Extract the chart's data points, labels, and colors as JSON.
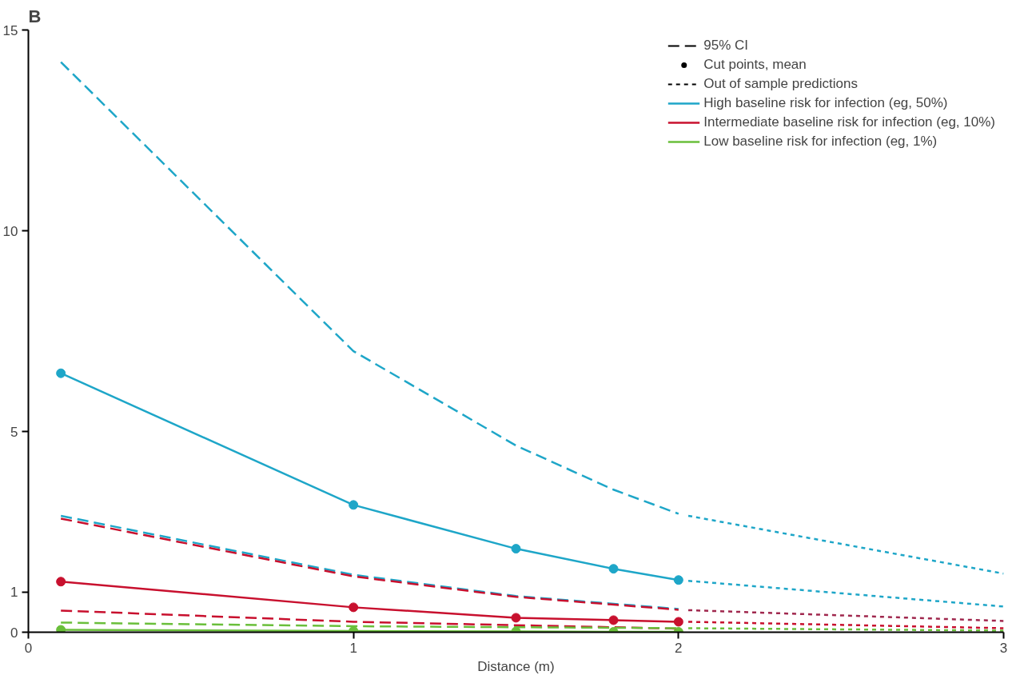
{
  "chart_data": {
    "type": "line",
    "title": "B",
    "xlabel": "Distance (m)",
    "xlim": [
      0,
      3
    ],
    "ylim": [
      0,
      15
    ],
    "xticks": [
      0,
      1,
      2,
      3
    ],
    "yticks": [
      0,
      1,
      5,
      10,
      15
    ],
    "grid": false,
    "legend": "top right",
    "annotations": [
      "95% CI",
      "Cut points, mean",
      "Out of sample predictions"
    ],
    "series": [
      {
        "name": "High baseline risk for infection (eg, 50%)",
        "color": "#1ea6c8",
        "x": [
          0.1,
          1,
          1.5,
          1.8,
          2
        ],
        "values": [
          6.45,
          3.17,
          2.08,
          1.58,
          1.3
        ],
        "line_style": "solid",
        "marker": "circle"
      },
      {
        "name": "Intermediate baseline risk for infection (eg, 10%)",
        "color": "#c8102e",
        "x": [
          0.1,
          1,
          1.5,
          1.8,
          2
        ],
        "values": [
          1.26,
          0.62,
          0.36,
          0.3,
          0.26
        ],
        "line_style": "solid",
        "marker": "circle"
      },
      {
        "name": "Low baseline risk for infection (eg, 1%)",
        "color": "#6abf3b",
        "x": [
          0.1,
          1,
          1.5,
          1.8,
          2
        ],
        "values": [
          0.06,
          0.03,
          0.02,
          0.01,
          0.01
        ],
        "line_style": "solid",
        "marker": "circle"
      },
      {
        "color": "#1ea6c8",
        "x": [
          0.1,
          1,
          1.5,
          1.8,
          2
        ],
        "values": [
          14.2,
          7.0,
          4.65,
          3.55,
          2.95
        ],
        "line_style": "dashed",
        "marker": "none"
      },
      {
        "color": "#1ea6c8",
        "x": [
          0.1,
          1,
          1.5,
          2
        ],
        "values": [
          2.9,
          1.43,
          0.9,
          0.58
        ],
        "line_style": "dashed",
        "marker": "none"
      },
      {
        "color": "#c8102e",
        "x": [
          0.1,
          1,
          1.5,
          2
        ],
        "values": [
          2.83,
          1.39,
          0.88,
          0.56
        ],
        "line_style": "dashed",
        "marker": "none"
      },
      {
        "color": "#c8102e",
        "x": [
          0.1,
          1,
          2
        ],
        "values": [
          0.54,
          0.26,
          0.09
        ],
        "line_style": "dashed",
        "marker": "none"
      },
      {
        "color": "#6abf3b",
        "x": [
          0.1,
          1,
          2
        ],
        "values": [
          0.24,
          0.15,
          0.1
        ],
        "line_style": "dashed",
        "marker": "none"
      },
      {
        "color": "#1ea6c8",
        "x": [
          2.03,
          2.5,
          3
        ],
        "values": [
          2.9,
          2.2,
          1.46
        ],
        "line_style": "dotted",
        "marker": "none"
      },
      {
        "color": "#1ea6c8",
        "x": [
          2.03,
          3
        ],
        "values": [
          1.28,
          0.64
        ],
        "line_style": "dotted",
        "marker": "none"
      },
      {
        "color": "#a0284e",
        "x": [
          2.03,
          3
        ],
        "values": [
          0.55,
          0.28
        ],
        "line_style": "dotted",
        "marker": "none"
      },
      {
        "color": "#c8102e",
        "x": [
          2.03,
          3
        ],
        "values": [
          0.26,
          0.1
        ],
        "line_style": "dotted",
        "marker": "none"
      },
      {
        "color": "#6abf3b",
        "x": [
          2.03,
          3
        ],
        "values": [
          0.1,
          0.04
        ],
        "line_style": "dotted",
        "marker": "none"
      }
    ]
  }
}
